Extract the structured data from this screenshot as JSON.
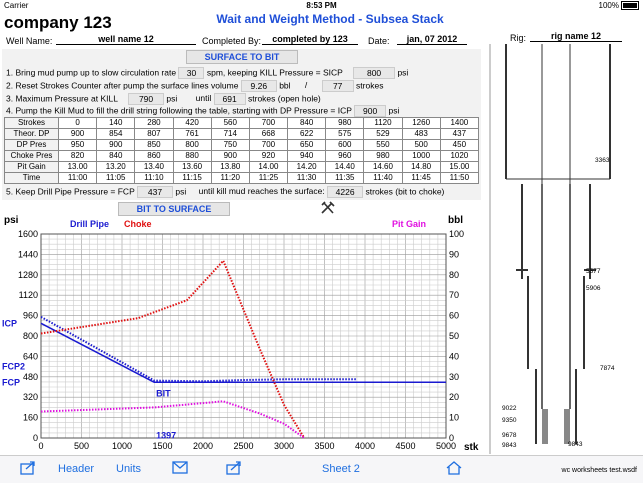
{
  "status_bar": {
    "carrier": "Carrier",
    "time": "8:53 PM",
    "battery": "100%"
  },
  "header": {
    "company": "company 123",
    "title": "Wait and Weight Method - Subsea Stack",
    "well_label": "Well Name:",
    "well_value": "well name 12",
    "completed_label": "Completed By:",
    "completed_value": "completed by 123",
    "date_label": "Date:",
    "date_value": "jan, 07 2012",
    "rig_label": "Rig:",
    "rig_value": "rig name 12"
  },
  "surface": {
    "heading": "SURFACE TO BIT",
    "step1": {
      "a": "1. Bring mud pump up to slow circulation rate",
      "spm": "30",
      "b": "spm, keeping KILL Pressure = SICP",
      "sicp": "800",
      "c": "psi"
    },
    "step2": {
      "a": "2. Reset Strokes Counter after pump the surface lines volume",
      "bbl": "9.26",
      "b": "bbl",
      "slash": "/",
      "strokes": "77",
      "c": "strokes"
    },
    "step3": {
      "a": "3. Maximum Pressure at KILL",
      "psi": "790",
      "b": "psi",
      "c": "until",
      "strokes": "691",
      "d": "strokes (open hole)"
    },
    "step4": {
      "a": "4. Pump the Kill Mud to fill the drill string following the table, starting with DP Pressure = ICP",
      "icp": "900",
      "b": "psi"
    },
    "step5": {
      "a": "5. Keep Drill Pipe Pressure = FCP",
      "fcp": "437",
      "b": "psi",
      "c": "until kill mud reaches the surface:",
      "strokes": "4226",
      "d": "strokes (bit to choke)"
    }
  },
  "schedule": {
    "rows": [
      {
        "label": "Strokes",
        "values": [
          "0",
          "140",
          "280",
          "420",
          "560",
          "700",
          "840",
          "980",
          "1120",
          "1260",
          "1400"
        ]
      },
      {
        "label": "Theor. DP",
        "values": [
          "900",
          "854",
          "807",
          "761",
          "714",
          "668",
          "622",
          "575",
          "529",
          "483",
          "437"
        ]
      },
      {
        "label": "DP Pres",
        "values": [
          "950",
          "900",
          "850",
          "800",
          "750",
          "700",
          "650",
          "600",
          "550",
          "500",
          "450"
        ]
      },
      {
        "label": "Choke Pres",
        "values": [
          "820",
          "840",
          "860",
          "880",
          "900",
          "920",
          "940",
          "960",
          "980",
          "1000",
          "1020"
        ]
      },
      {
        "label": "Pit Gain",
        "values": [
          "13.00",
          "13.20",
          "13.40",
          "13.60",
          "13.80",
          "14.00",
          "14.20",
          "14.40",
          "14.60",
          "14.80",
          "15.00"
        ]
      },
      {
        "label": "Time",
        "values": [
          "11:00",
          "11:05",
          "11:10",
          "11:15",
          "11:20",
          "11:25",
          "11:30",
          "11:35",
          "11:40",
          "11:45",
          "11:50"
        ]
      }
    ]
  },
  "bit_heading": "BIT TO SURFACE",
  "chart_data": {
    "type": "line",
    "left_axis_label": "psi",
    "right_axis_label": "bbl",
    "x_axis_label": "stk",
    "xlim": [
      0,
      5000
    ],
    "x_ticks": [
      "0",
      "500",
      "1000",
      "1500",
      "2000",
      "2500",
      "3000",
      "3500",
      "4000",
      "4500",
      "5000"
    ],
    "ylim": [
      0,
      1600
    ],
    "y_ticks": [
      "0",
      "160",
      "320",
      "480",
      "640",
      "800",
      "960",
      "1120",
      "1280",
      "1440",
      "1600"
    ],
    "y2lim": [
      0,
      100
    ],
    "y2_ticks": [
      "0",
      "10",
      "20",
      "30",
      "40",
      "50",
      "60",
      "70",
      "80",
      "90",
      "100"
    ],
    "legend": [
      "Drill Pipe",
      "Choke",
      "Pit Gain"
    ],
    "series": [
      {
        "name": "Drill Pipe",
        "color": "#1a1ad0",
        "style": "solid",
        "points": [
          [
            0,
            900
          ],
          [
            1397,
            437
          ],
          [
            5000,
            437
          ]
        ]
      },
      {
        "name": "Drill Pipe",
        "color": "#1a1ad0",
        "style": "dotted",
        "points": [
          [
            0,
            950
          ],
          [
            1400,
            450
          ],
          [
            2000,
            445
          ],
          [
            2500,
            455
          ],
          [
            3000,
            460
          ],
          [
            3900,
            460
          ]
        ]
      },
      {
        "name": "Choke",
        "color": "#e01010",
        "style": "dotted",
        "points": [
          [
            0,
            820
          ],
          [
            600,
            880
          ],
          [
            1200,
            940
          ],
          [
            1800,
            1080
          ],
          [
            2250,
            1390
          ],
          [
            2700,
            700
          ],
          [
            3000,
            260
          ],
          [
            3250,
            0
          ]
        ]
      },
      {
        "name": "Pit Gain",
        "color": "#e010e0",
        "style": "dotted",
        "axis": "right",
        "points": [
          [
            0,
            13
          ],
          [
            1400,
            15
          ],
          [
            2250,
            18
          ],
          [
            2700,
            12
          ],
          [
            3000,
            7
          ],
          [
            3250,
            0
          ]
        ]
      }
    ],
    "annotations": [
      {
        "text": "ICP",
        "y": 900
      },
      {
        "text": "FCP2",
        "y": 560
      },
      {
        "text": "FCP",
        "y": 437
      },
      {
        "text": "BIT",
        "x": 1397,
        "y": 437
      },
      {
        "text": "1397",
        "x": 1397,
        "y": 60
      }
    ]
  },
  "well_diagram": {
    "labels": [
      "3363",
      "5577",
      "5906",
      "7874",
      "9022",
      "9350",
      "9678",
      "9843",
      "9843"
    ]
  },
  "toolbar": {
    "header_label": "Header",
    "units_label": "Units",
    "sheet_label": "Sheet 2",
    "file_label": "wc worksheets test.wsdf"
  }
}
